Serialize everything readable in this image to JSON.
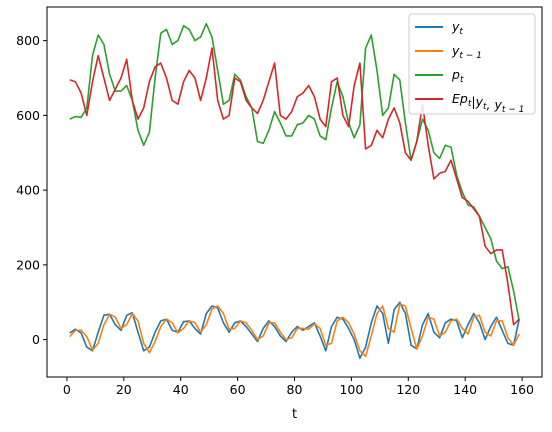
{
  "chart_data": {
    "type": "line",
    "xlabel": "t",
    "ylabel": "",
    "title": "",
    "xlim": [
      -7,
      167
    ],
    "ylim": [
      -100,
      890
    ],
    "xticks": [
      0,
      20,
      40,
      60,
      80,
      100,
      120,
      140,
      160
    ],
    "yticks": [
      0,
      200,
      400,
      600,
      800
    ],
    "grid": false,
    "legend_position": "top-right",
    "series": [
      {
        "name": "y_t",
        "color": "#1f77b4",
        "points": [
          [
            1,
            18
          ],
          [
            3,
            28
          ],
          [
            5,
            18
          ],
          [
            7,
            -20
          ],
          [
            9,
            -30
          ],
          [
            11,
            20
          ],
          [
            13,
            65
          ],
          [
            15,
            68
          ],
          [
            17,
            40
          ],
          [
            19,
            25
          ],
          [
            21,
            65
          ],
          [
            23,
            72
          ],
          [
            25,
            20
          ],
          [
            27,
            -30
          ],
          [
            29,
            -20
          ],
          [
            31,
            20
          ],
          [
            33,
            50
          ],
          [
            35,
            55
          ],
          [
            37,
            25
          ],
          [
            39,
            20
          ],
          [
            41,
            48
          ],
          [
            43,
            50
          ],
          [
            45,
            30
          ],
          [
            47,
            15
          ],
          [
            49,
            70
          ],
          [
            51,
            90
          ],
          [
            53,
            85
          ],
          [
            55,
            45
          ],
          [
            57,
            20
          ],
          [
            59,
            45
          ],
          [
            61,
            50
          ],
          [
            63,
            35
          ],
          [
            65,
            15
          ],
          [
            67,
            -5
          ],
          [
            69,
            30
          ],
          [
            71,
            50
          ],
          [
            73,
            35
          ],
          [
            75,
            10
          ],
          [
            77,
            -5
          ],
          [
            79,
            20
          ],
          [
            81,
            35
          ],
          [
            83,
            25
          ],
          [
            85,
            35
          ],
          [
            87,
            45
          ],
          [
            89,
            10
          ],
          [
            91,
            -30
          ],
          [
            93,
            35
          ],
          [
            95,
            60
          ],
          [
            97,
            55
          ],
          [
            99,
            30
          ],
          [
            101,
            0
          ],
          [
            103,
            -50
          ],
          [
            105,
            -20
          ],
          [
            107,
            45
          ],
          [
            109,
            90
          ],
          [
            111,
            70
          ],
          [
            113,
            -10
          ],
          [
            115,
            80
          ],
          [
            117,
            100
          ],
          [
            119,
            70
          ],
          [
            121,
            -15
          ],
          [
            123,
            -25
          ],
          [
            125,
            40
          ],
          [
            127,
            70
          ],
          [
            129,
            20
          ],
          [
            131,
            5
          ],
          [
            133,
            45
          ],
          [
            135,
            55
          ],
          [
            137,
            50
          ],
          [
            139,
            5
          ],
          [
            141,
            40
          ],
          [
            143,
            70
          ],
          [
            145,
            45
          ],
          [
            147,
            0
          ],
          [
            149,
            35
          ],
          [
            151,
            60
          ],
          [
            153,
            25
          ],
          [
            155,
            -10
          ],
          [
            157,
            -15
          ],
          [
            159,
            55
          ]
        ]
      },
      {
        "name": "y_{t-1}",
        "color": "#ff7f0e",
        "points": [
          [
            1,
            8
          ],
          [
            3,
            25
          ],
          [
            5,
            25
          ],
          [
            7,
            8
          ],
          [
            9,
            -28
          ],
          [
            11,
            -10
          ],
          [
            13,
            40
          ],
          [
            15,
            68
          ],
          [
            17,
            60
          ],
          [
            19,
            30
          ],
          [
            21,
            40
          ],
          [
            23,
            70
          ],
          [
            25,
            50
          ],
          [
            27,
            -10
          ],
          [
            29,
            -35
          ],
          [
            31,
            -5
          ],
          [
            33,
            35
          ],
          [
            35,
            55
          ],
          [
            37,
            45
          ],
          [
            39,
            18
          ],
          [
            41,
            30
          ],
          [
            43,
            50
          ],
          [
            45,
            45
          ],
          [
            47,
            20
          ],
          [
            49,
            40
          ],
          [
            51,
            82
          ],
          [
            53,
            90
          ],
          [
            55,
            70
          ],
          [
            57,
            28
          ],
          [
            59,
            30
          ],
          [
            61,
            50
          ],
          [
            63,
            45
          ],
          [
            65,
            25
          ],
          [
            67,
            0
          ],
          [
            69,
            10
          ],
          [
            71,
            45
          ],
          [
            73,
            45
          ],
          [
            75,
            20
          ],
          [
            77,
            0
          ],
          [
            79,
            5
          ],
          [
            81,
            30
          ],
          [
            83,
            30
          ],
          [
            85,
            28
          ],
          [
            87,
            42
          ],
          [
            89,
            30
          ],
          [
            91,
            -15
          ],
          [
            93,
            -10
          ],
          [
            95,
            50
          ],
          [
            97,
            60
          ],
          [
            99,
            45
          ],
          [
            101,
            15
          ],
          [
            103,
            -30
          ],
          [
            105,
            -45
          ],
          [
            107,
            10
          ],
          [
            109,
            70
          ],
          [
            111,
            90
          ],
          [
            113,
            30
          ],
          [
            115,
            20
          ],
          [
            117,
            95
          ],
          [
            119,
            90
          ],
          [
            121,
            30
          ],
          [
            123,
            -25
          ],
          [
            125,
            10
          ],
          [
            127,
            60
          ],
          [
            129,
            55
          ],
          [
            131,
            10
          ],
          [
            133,
            20
          ],
          [
            135,
            50
          ],
          [
            137,
            55
          ],
          [
            139,
            30
          ],
          [
            141,
            15
          ],
          [
            143,
            60
          ],
          [
            145,
            65
          ],
          [
            147,
            20
          ],
          [
            149,
            10
          ],
          [
            151,
            50
          ],
          [
            153,
            50
          ],
          [
            155,
            5
          ],
          [
            157,
            -15
          ],
          [
            159,
            15
          ]
        ]
      },
      {
        "name": "p_t",
        "color": "#2ca02c",
        "points": [
          [
            1,
            590
          ],
          [
            3,
            597
          ],
          [
            5,
            595
          ],
          [
            7,
            620
          ],
          [
            9,
            760
          ],
          [
            11,
            815
          ],
          [
            13,
            790
          ],
          [
            15,
            710
          ],
          [
            17,
            665
          ],
          [
            19,
            665
          ],
          [
            21,
            680
          ],
          [
            23,
            640
          ],
          [
            25,
            560
          ],
          [
            27,
            520
          ],
          [
            29,
            555
          ],
          [
            31,
            700
          ],
          [
            33,
            820
          ],
          [
            35,
            830
          ],
          [
            37,
            790
          ],
          [
            39,
            800
          ],
          [
            41,
            840
          ],
          [
            43,
            830
          ],
          [
            45,
            800
          ],
          [
            47,
            810
          ],
          [
            49,
            845
          ],
          [
            51,
            810
          ],
          [
            53,
            720
          ],
          [
            55,
            630
          ],
          [
            57,
            640
          ],
          [
            59,
            710
          ],
          [
            61,
            695
          ],
          [
            63,
            650
          ],
          [
            65,
            620
          ],
          [
            67,
            530
          ],
          [
            69,
            525
          ],
          [
            71,
            560
          ],
          [
            73,
            610
          ],
          [
            75,
            580
          ],
          [
            77,
            545
          ],
          [
            79,
            545
          ],
          [
            81,
            575
          ],
          [
            83,
            580
          ],
          [
            85,
            600
          ],
          [
            87,
            590
          ],
          [
            89,
            545
          ],
          [
            91,
            535
          ],
          [
            93,
            620
          ],
          [
            95,
            690
          ],
          [
            97,
            650
          ],
          [
            99,
            580
          ],
          [
            101,
            540
          ],
          [
            103,
            575
          ],
          [
            105,
            780
          ],
          [
            107,
            815
          ],
          [
            109,
            720
          ],
          [
            111,
            600
          ],
          [
            113,
            620
          ],
          [
            115,
            710
          ],
          [
            117,
            695
          ],
          [
            119,
            580
          ],
          [
            121,
            480
          ],
          [
            123,
            530
          ],
          [
            125,
            590
          ],
          [
            127,
            560
          ],
          [
            129,
            500
          ],
          [
            131,
            485
          ],
          [
            133,
            520
          ],
          [
            135,
            515
          ],
          [
            137,
            440
          ],
          [
            139,
            395
          ],
          [
            141,
            360
          ],
          [
            143,
            355
          ],
          [
            145,
            330
          ],
          [
            147,
            300
          ],
          [
            149,
            270
          ],
          [
            151,
            210
          ],
          [
            153,
            190
          ],
          [
            155,
            195
          ],
          [
            157,
            130
          ],
          [
            159,
            50
          ]
        ]
      },
      {
        "name": "Ep_t|y_t, y_{t-1}",
        "color": "#d62728",
        "points": [
          [
            1,
            695
          ],
          [
            3,
            690
          ],
          [
            5,
            660
          ],
          [
            7,
            600
          ],
          [
            9,
            690
          ],
          [
            11,
            760
          ],
          [
            13,
            700
          ],
          [
            15,
            640
          ],
          [
            17,
            670
          ],
          [
            19,
            700
          ],
          [
            21,
            750
          ],
          [
            23,
            640
          ],
          [
            25,
            590
          ],
          [
            27,
            620
          ],
          [
            29,
            690
          ],
          [
            31,
            730
          ],
          [
            33,
            740
          ],
          [
            35,
            700
          ],
          [
            37,
            640
          ],
          [
            39,
            630
          ],
          [
            41,
            690
          ],
          [
            43,
            720
          ],
          [
            45,
            700
          ],
          [
            47,
            640
          ],
          [
            49,
            700
          ],
          [
            51,
            780
          ],
          [
            53,
            640
          ],
          [
            55,
            590
          ],
          [
            57,
            600
          ],
          [
            59,
            700
          ],
          [
            61,
            690
          ],
          [
            63,
            640
          ],
          [
            65,
            620
          ],
          [
            67,
            605
          ],
          [
            69,
            640
          ],
          [
            71,
            690
          ],
          [
            73,
            740
          ],
          [
            75,
            600
          ],
          [
            77,
            590
          ],
          [
            79,
            610
          ],
          [
            81,
            650
          ],
          [
            83,
            660
          ],
          [
            85,
            680
          ],
          [
            87,
            650
          ],
          [
            89,
            590
          ],
          [
            91,
            570
          ],
          [
            93,
            690
          ],
          [
            95,
            700
          ],
          [
            97,
            600
          ],
          [
            99,
            570
          ],
          [
            101,
            680
          ],
          [
            103,
            740
          ],
          [
            105,
            510
          ],
          [
            107,
            520
          ],
          [
            109,
            560
          ],
          [
            111,
            540
          ],
          [
            113,
            590
          ],
          [
            115,
            620
          ],
          [
            117,
            580
          ],
          [
            119,
            500
          ],
          [
            121,
            480
          ],
          [
            123,
            530
          ],
          [
            125,
            630
          ],
          [
            127,
            520
          ],
          [
            129,
            430
          ],
          [
            131,
            445
          ],
          [
            133,
            450
          ],
          [
            135,
            480
          ],
          [
            137,
            430
          ],
          [
            139,
            380
          ],
          [
            141,
            370
          ],
          [
            143,
            350
          ],
          [
            145,
            330
          ],
          [
            147,
            250
          ],
          [
            149,
            230
          ],
          [
            151,
            240
          ],
          [
            153,
            240
          ],
          [
            155,
            150
          ],
          [
            157,
            40
          ],
          [
            159,
            55
          ]
        ]
      }
    ]
  },
  "legend": {
    "entries": [
      {
        "main": "y",
        "sub": "t",
        "rest": ""
      },
      {
        "main": "y",
        "sub": "t − 1",
        "rest": ""
      },
      {
        "main": "p",
        "sub": "t",
        "rest": ""
      },
      {
        "main": "Ep",
        "sub": "t",
        "rest": "|y",
        "sub2": "t",
        "rest2": ", y",
        "sub3": "t − 1"
      }
    ]
  }
}
